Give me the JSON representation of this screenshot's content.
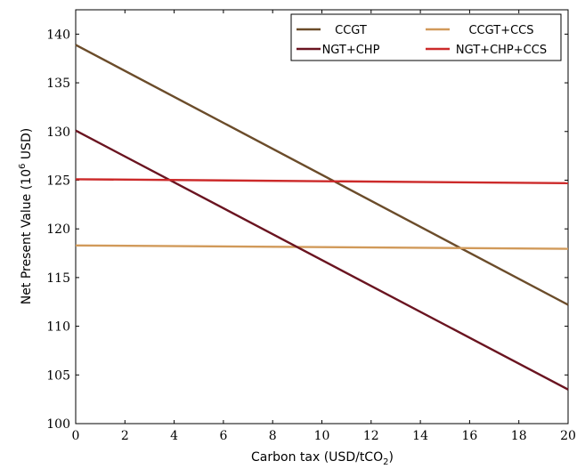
{
  "chart_data": {
    "type": "line",
    "xlabel": "Carbon tax (USD/tCO",
    "xlabel_sub": "2",
    "xlabel_end": ")",
    "ylabel": "Net Present Value (10",
    "ylabel_sup": "6",
    "ylabel_end": " USD)",
    "xlim": [
      0,
      20
    ],
    "ylim": [
      100,
      142.5
    ],
    "xticks": [
      0,
      2,
      4,
      6,
      8,
      10,
      12,
      14,
      16,
      18,
      20
    ],
    "yticks": [
      100,
      105,
      110,
      115,
      120,
      125,
      130,
      135,
      140
    ],
    "grid": false,
    "legend_position": "top-right",
    "series": [
      {
        "name": "CCGT",
        "color": "#6b4c2a",
        "x": [
          0,
          20
        ],
        "y": [
          138.9,
          112.2
        ]
      },
      {
        "name": "CCGT+CCS",
        "color": "#d19a5a",
        "x": [
          0,
          20
        ],
        "y": [
          118.3,
          117.95
        ]
      },
      {
        "name": "NGT+CHP",
        "color": "#6a1420",
        "x": [
          0,
          20
        ],
        "y": [
          130.1,
          103.5
        ]
      },
      {
        "name": "NGT+CHP+CCS",
        "color": "#cc2a2a",
        "x": [
          0,
          20
        ],
        "y": [
          125.1,
          124.7
        ]
      }
    ]
  }
}
